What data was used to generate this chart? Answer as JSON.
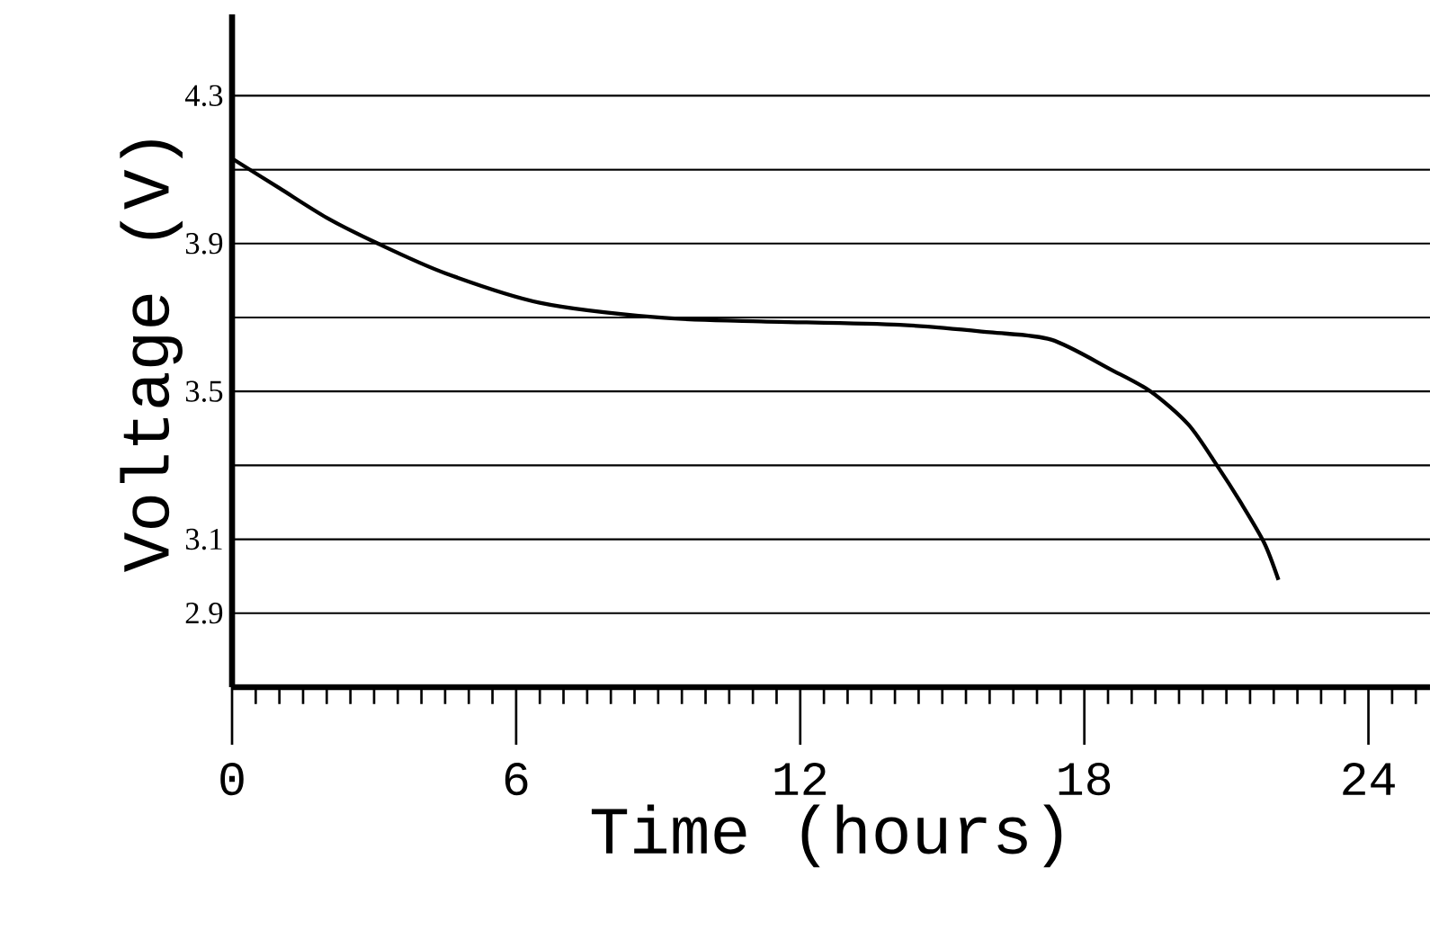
{
  "chart_data": {
    "type": "line",
    "xlabel": "Time (hours)",
    "ylabel": "Voltage (V)",
    "color": "#000000",
    "grid": "y",
    "x": [
      0,
      1,
      2,
      3.08,
      4.5,
      6.5,
      9,
      11,
      14.1,
      16,
      17.3,
      18.55,
      19.4,
      20.2,
      20.8,
      21.3,
      21.8,
      22.1
    ],
    "values": [
      4.13,
      4.05,
      3.97,
      3.9,
      3.82,
      3.74,
      3.7,
      3.69,
      3.68,
      3.66,
      3.64,
      3.56,
      3.5,
      3.41,
      3.3,
      3.2,
      3.09,
      2.99
    ],
    "xlim": [
      0,
      25.3
    ],
    "ylim": [
      2.7,
      4.52
    ],
    "xticks": [
      0,
      {
        "value": 0.5,
        "label": null
      },
      {
        "value": 1,
        "label": null
      },
      {
        "value": 1.5,
        "label": null
      },
      {
        "value": 2,
        "label": null
      },
      {
        "value": 2.5,
        "label": null
      },
      {
        "value": 3,
        "label": null
      },
      {
        "value": 3.5,
        "label": null
      },
      {
        "value": 4,
        "label": null
      },
      {
        "value": 4.5,
        "label": null
      },
      {
        "value": 5,
        "label": null
      },
      {
        "value": 5.5,
        "label": null
      },
      6,
      {
        "value": 6.5,
        "label": null
      },
      {
        "value": 7,
        "label": null
      },
      {
        "value": 7.5,
        "label": null
      },
      {
        "value": 8,
        "label": null
      },
      {
        "value": 8.5,
        "label": null
      },
      {
        "value": 9,
        "label": null
      },
      {
        "value": 9.5,
        "label": null
      },
      {
        "value": 10,
        "label": null
      },
      {
        "value": 10.5,
        "label": null
      },
      {
        "value": 11,
        "label": null
      },
      {
        "value": 11.5,
        "label": null
      },
      12,
      {
        "value": 12.5,
        "label": null
      },
      {
        "value": 13,
        "label": null
      },
      {
        "value": 13.5,
        "label": null
      },
      {
        "value": 14,
        "label": null
      },
      {
        "value": 14.5,
        "label": null
      },
      {
        "value": 15,
        "label": null
      },
      {
        "value": 15.5,
        "label": null
      },
      {
        "value": 16,
        "label": null
      },
      {
        "value": 16.5,
        "label": null
      },
      {
        "value": 17,
        "label": null
      },
      {
        "value": 17.5,
        "label": null
      },
      18,
      {
        "value": 18.5,
        "label": null
      },
      {
        "value": 19,
        "label": null
      },
      {
        "value": 19.5,
        "label": null
      },
      {
        "value": 20,
        "label": null
      },
      {
        "value": 20.5,
        "label": null
      },
      {
        "value": 21,
        "label": null
      },
      {
        "value": 21.5,
        "label": null
      },
      {
        "value": 22,
        "label": null
      },
      {
        "value": 22.5,
        "label": null
      },
      {
        "value": 23,
        "label": null
      },
      {
        "value": 23.5,
        "label": null
      },
      24,
      {
        "value": 24.5,
        "label": null
      },
      {
        "value": 25,
        "label": null
      }
    ],
    "yticks": [
      2.9,
      3.1,
      {
        "value": 3.3,
        "label": null
      },
      3.5,
      {
        "value": 3.7,
        "label": null
      },
      3.9,
      {
        "value": 4.1,
        "label": null
      },
      4.3
    ]
  }
}
